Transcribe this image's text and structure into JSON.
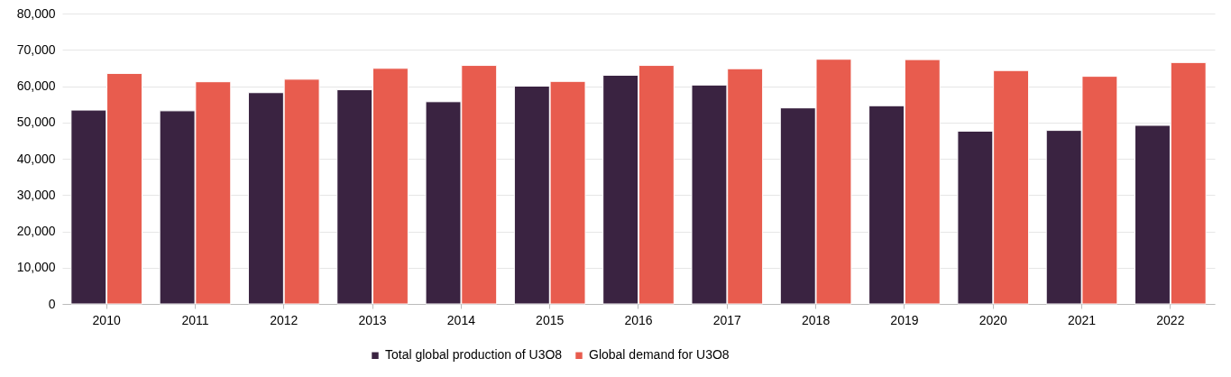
{
  "chart_data": {
    "type": "bar",
    "categories": [
      "2010",
      "2011",
      "2012",
      "2013",
      "2014",
      "2015",
      "2016",
      "2017",
      "2018",
      "2019",
      "2020",
      "2021",
      "2022"
    ],
    "series": [
      {
        "name": "Total global production of U3O8",
        "color": "#3a2341",
        "values": [
          53400,
          53200,
          58200,
          59000,
          55700,
          60000,
          63000,
          60300,
          54000,
          54600,
          47600,
          47800,
          49200
        ]
      },
      {
        "name": "Global demand for U3O8",
        "color": "#e85c4e",
        "values": [
          63500,
          61200,
          61900,
          64900,
          65700,
          61300,
          65700,
          64800,
          67400,
          67300,
          64300,
          62700,
          66500
        ]
      }
    ],
    "ylim": [
      0,
      80000
    ],
    "yticks": [
      0,
      {
        "value": 10000,
        "label": "10,000"
      },
      {
        "value": 20000,
        "label": "20,000"
      },
      {
        "value": 30000,
        "label": "30,000"
      },
      {
        "value": 40000,
        "label": "40,000"
      },
      {
        "value": 50000,
        "label": "50,000"
      },
      {
        "value": 60000,
        "label": "60,000"
      },
      {
        "value": 70000,
        "label": "70,000"
      },
      {
        "value": 80000,
        "label": "80,000"
      }
    ],
    "grid": "y",
    "legend": "bottom"
  }
}
